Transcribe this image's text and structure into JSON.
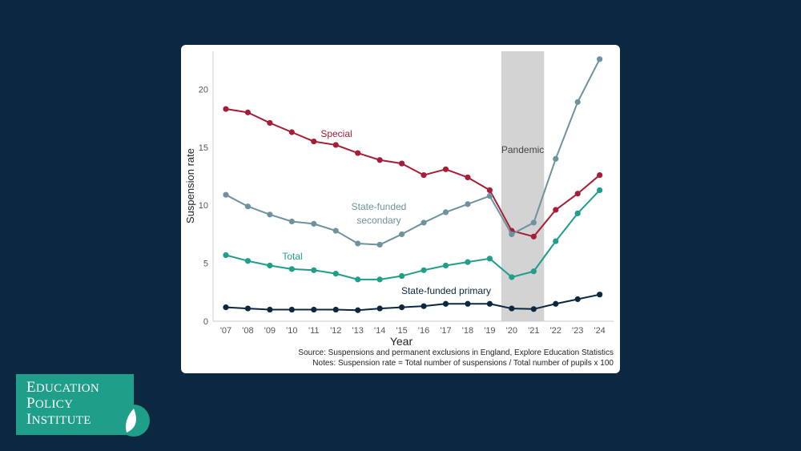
{
  "chart_data": {
    "type": "line",
    "xlabel": "Year",
    "ylabel": "Suspension rate",
    "categories": [
      "'07",
      "'08",
      "'09",
      "'10",
      "'11",
      "'12",
      "'13",
      "'14",
      "'15",
      "'16",
      "'17",
      "'18",
      "'19",
      "'20",
      "'21",
      "'22",
      "'23",
      "'24"
    ],
    "ylim": [
      0,
      23
    ],
    "yticks": [
      0,
      5,
      10,
      15,
      20
    ],
    "grid": false,
    "shaded_region": {
      "label": "Pandemic",
      "from": "'20",
      "to": "'21",
      "color": "#d3d3d3"
    },
    "series": [
      {
        "name": "Special",
        "color": "#a51d36",
        "values": [
          18.3,
          18.0,
          17.1,
          16.3,
          15.5,
          15.2,
          14.5,
          13.9,
          13.6,
          12.6,
          13.1,
          12.4,
          11.3,
          7.8,
          7.3,
          9.6,
          11.0,
          12.6
        ]
      },
      {
        "name": "State-funded secondary",
        "color": "#6e929e",
        "values": [
          10.9,
          9.9,
          9.2,
          8.6,
          8.4,
          7.8,
          6.7,
          6.6,
          7.5,
          8.5,
          9.4,
          10.1,
          10.8,
          7.5,
          8.5,
          14.0,
          18.9,
          22.6
        ]
      },
      {
        "name": "Total",
        "color": "#1f9e89",
        "values": [
          5.7,
          5.2,
          4.8,
          4.5,
          4.4,
          4.1,
          3.6,
          3.6,
          3.9,
          4.4,
          4.8,
          5.1,
          5.4,
          3.8,
          4.3,
          6.9,
          9.3,
          11.3
        ]
      },
      {
        "name": "State-funded primary",
        "color": "#0c2840",
        "values": [
          1.2,
          1.1,
          1.0,
          1.0,
          1.0,
          1.0,
          0.95,
          1.1,
          1.2,
          1.3,
          1.5,
          1.5,
          1.5,
          1.1,
          1.05,
          1.5,
          1.9,
          2.3
        ]
      }
    ],
    "annotations": {
      "special": "Special",
      "secondary_line1": "State-funded",
      "secondary_line2": "secondary",
      "total": "Total",
      "primary": "State-funded primary"
    }
  },
  "source": "Source: Suspensions and permanent exclusions in England, Explore Education Statistics",
  "notes": "Notes: Suspension rate = Total number of suspensions / Total number of pupils x 100",
  "logo": {
    "line1": "Education",
    "line2": "Policy",
    "line3": "Institute",
    "colors": {
      "box": "#1f9e89",
      "text": "#ffffff"
    }
  },
  "colors": {
    "background": "#0c2840",
    "card": "#ffffff",
    "axis_text": "#555555"
  }
}
